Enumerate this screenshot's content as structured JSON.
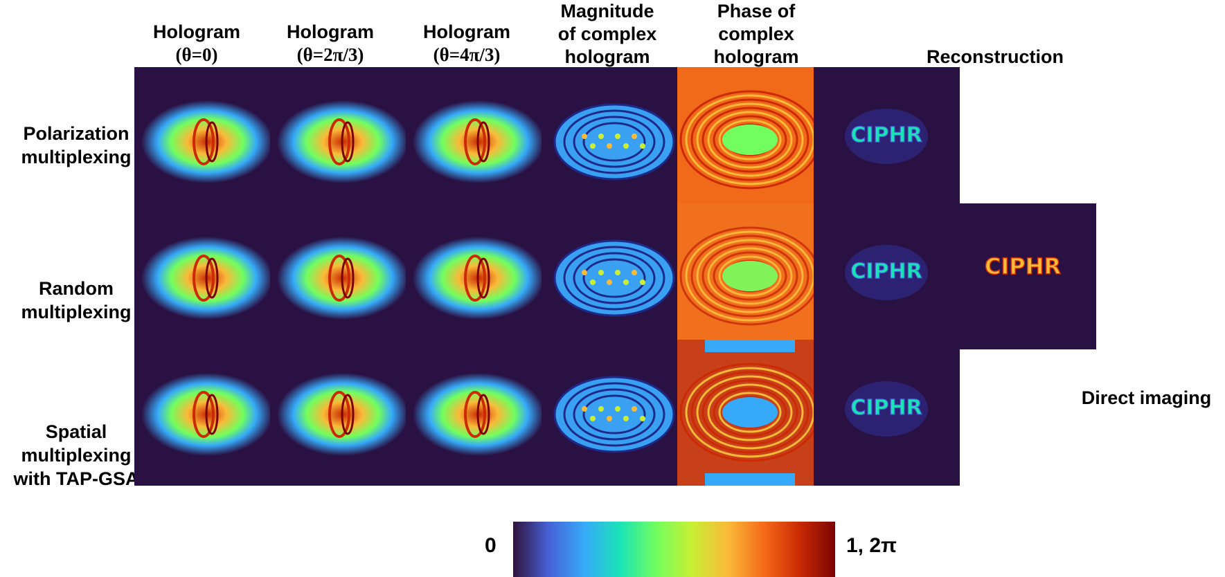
{
  "columns": [
    {
      "line1": "Hologram",
      "line2": "(θ=0)"
    },
    {
      "line1": "Hologram",
      "line2": "(θ=2π/3)"
    },
    {
      "line1": "Hologram",
      "line2": "(θ=4π/3)"
    },
    {
      "line1": "Magnitude",
      "line2": "of complex",
      "line3": "hologram"
    },
    {
      "line1": "Phase of",
      "line2": "complex",
      "line3": "hologram"
    },
    {
      "line1": "Reconstruction"
    }
  ],
  "rows": [
    {
      "line1": "Polarization",
      "line2": "multiplexing"
    },
    {
      "line1": "Random",
      "line2": "multiplexing"
    },
    {
      "line1": "Spatial",
      "line2": "multiplexing",
      "line3": "with TAP-GSA"
    }
  ],
  "reconstruction_text": "CIPHR",
  "direct_imaging_label": "Direct imaging",
  "colorbar": {
    "min_label": "0",
    "max_label": "1, 2π",
    "colormap": [
      "#30123b",
      "#4662d7",
      "#36aaf9",
      "#1ae4b6",
      "#72fe5e",
      "#c8ef34",
      "#faba39",
      "#f66b19",
      "#ca2a04",
      "#7a0403"
    ]
  },
  "colors": {
    "background": "#2a1144",
    "phase_background": "#f06a1a"
  }
}
